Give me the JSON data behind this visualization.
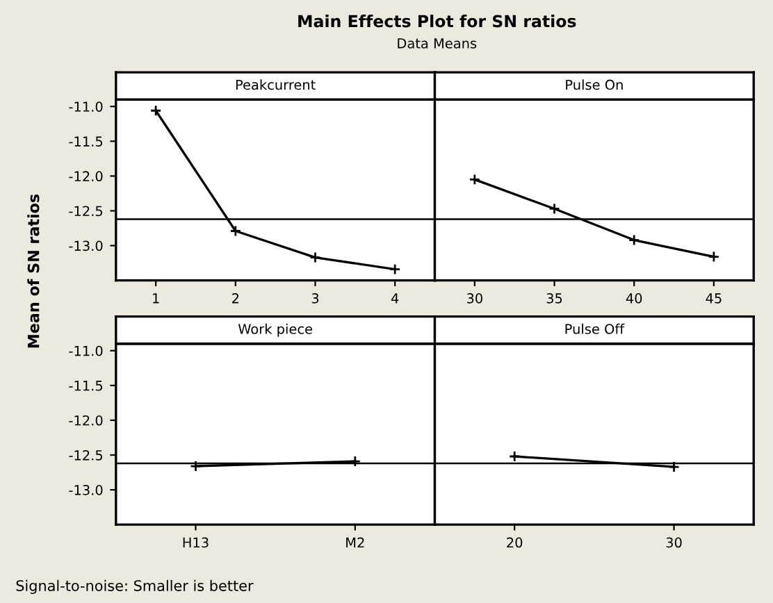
{
  "chart_data": [
    {
      "type": "line",
      "title": "Peakcurrent",
      "ylabel": "Mean of SN ratios",
      "annotations": [
        "Main Effects Plot for SN ratios",
        "Data Means",
        "Signal-to-noise: Smaller is better"
      ],
      "x": [
        1,
        2,
        3,
        4
      ],
      "values": [
        -11.06,
        -12.79,
        -13.17,
        -13.34
      ],
      "color": "#000000",
      "marker": "cross",
      "xlim": [
        0.5,
        4.5
      ],
      "xticks": [
        1,
        2,
        3,
        4
      ],
      "ylim": [
        -13.5,
        -10.9
      ],
      "yticks": [
        {
          "value": -11.0,
          "label": "-11.0"
        },
        {
          "value": -11.5,
          "label": "-11.5"
        },
        {
          "value": -12.0,
          "label": "-12.0"
        },
        {
          "value": -12.5,
          "label": "-12.5"
        },
        {
          "value": -13.0,
          "label": "-13.0"
        }
      ],
      "ref_lines": [
        {
          "axis": "y",
          "value": -12.62,
          "color": "#000000"
        }
      ]
    },
    {
      "type": "line",
      "title": "Pulse On",
      "x": [
        30,
        35,
        40,
        45
      ],
      "values": [
        -12.05,
        -12.47,
        -12.92,
        -13.16
      ],
      "color": "#000000",
      "marker": "cross",
      "xlim": [
        27.5,
        47.5
      ],
      "xticks": [
        30,
        35,
        40,
        45
      ],
      "ylim": [
        -13.5,
        -10.9
      ],
      "tick_labels": "x",
      "ref_lines": [
        {
          "axis": "y",
          "value": -12.62,
          "color": "#000000"
        }
      ]
    },
    {
      "type": "line",
      "title": "Work piece",
      "categories": [
        "H13",
        "M2"
      ],
      "values": [
        -12.66,
        -12.59
      ],
      "color": "#000000",
      "marker": "cross",
      "ylim": [
        -13.5,
        -10.9
      ],
      "yticks": [
        {
          "value": -11.0,
          "label": "-11.0"
        },
        {
          "value": -11.5,
          "label": "-11.5"
        },
        {
          "value": -12.0,
          "label": "-12.0"
        },
        {
          "value": -12.5,
          "label": "-12.5"
        },
        {
          "value": -13.0,
          "label": "-13.0"
        }
      ],
      "ref_lines": [
        {
          "axis": "y",
          "value": -12.62,
          "color": "#000000"
        }
      ]
    },
    {
      "type": "line",
      "title": "Pulse Off",
      "x": [
        20,
        30
      ],
      "values": [
        -12.52,
        -12.67
      ],
      "color": "#000000",
      "marker": "cross",
      "xlim": [
        15,
        35
      ],
      "xticks": [
        20,
        30
      ],
      "ylim": [
        -13.5,
        -10.9
      ],
      "tick_labels": "x",
      "ref_lines": [
        {
          "axis": "y",
          "value": -12.62,
          "color": "#000000"
        }
      ]
    }
  ]
}
